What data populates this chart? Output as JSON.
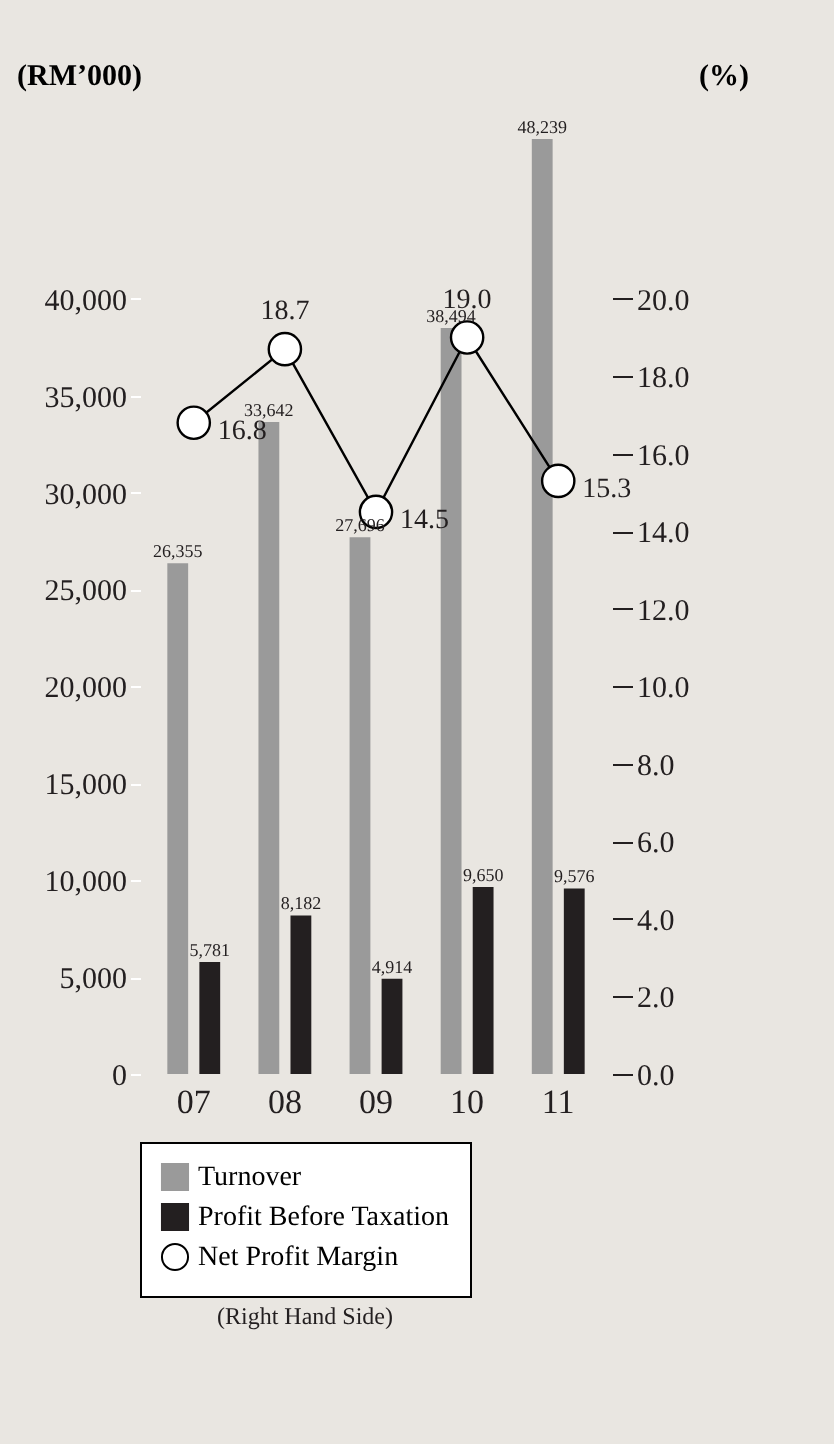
{
  "chart_data": {
    "type": "bar",
    "ylabel": "(RM’000)",
    "y2label": "(%)",
    "categories": [
      "07",
      "08",
      "09",
      "10",
      "11"
    ],
    "series": [
      {
        "name": "Turnover",
        "color": "#9a9a9a",
        "values": [
          26355,
          33642,
          27696,
          38494,
          48239
        ],
        "value_labels": [
          "26,355",
          "33,642",
          "27,696",
          "38,494",
          "48,239"
        ]
      },
      {
        "name": "Profit Before Taxation",
        "color": "#231f20",
        "values": [
          5781,
          8182,
          4914,
          9650,
          9576
        ],
        "value_labels": [
          "5,781",
          "8,182",
          "4,914",
          "9,650",
          "9,576"
        ]
      },
      {
        "name": "Net Profit Margin",
        "type": "line",
        "axis": "y2",
        "color": "#000000",
        "values": [
          16.8,
          18.7,
          14.5,
          19.0,
          15.3
        ],
        "value_labels": [
          "16.8",
          "18.7",
          "14.5",
          "19.0",
          "15.3"
        ]
      }
    ],
    "ylim": [
      0,
      48500
    ],
    "yticks": [
      0,
      {
        "value": 5000,
        "label": "5,000"
      },
      {
        "value": 10000,
        "label": "10,000"
      },
      {
        "value": 15000,
        "label": "15,000"
      },
      {
        "value": 20000,
        "label": "20,000"
      },
      {
        "value": 25000,
        "label": "25,000"
      },
      {
        "value": 30000,
        "label": "30,000"
      },
      {
        "value": 35000,
        "label": "35,000"
      },
      {
        "value": 40000,
        "label": "40,000"
      }
    ],
    "y2lim": [
      0,
      24.25
    ],
    "y2ticks": [
      {
        "value": 0,
        "label": "0.0"
      },
      {
        "value": 2,
        "label": "2.0"
      },
      {
        "value": 4,
        "label": "4.0"
      },
      {
        "value": 6,
        "label": "6.0"
      },
      {
        "value": 8,
        "label": "8.0"
      },
      {
        "value": 10,
        "label": "10.0"
      },
      {
        "value": 12,
        "label": "12.0"
      },
      {
        "value": 14,
        "label": "14.0"
      },
      {
        "value": 16,
        "label": "16.0"
      },
      {
        "value": 18,
        "label": "18.0"
      },
      {
        "value": 20,
        "label": "20.0"
      }
    ],
    "marker": "circle",
    "grid": false,
    "legend": "bottom",
    "annotations": [
      "(Right Hand Side)"
    ]
  }
}
